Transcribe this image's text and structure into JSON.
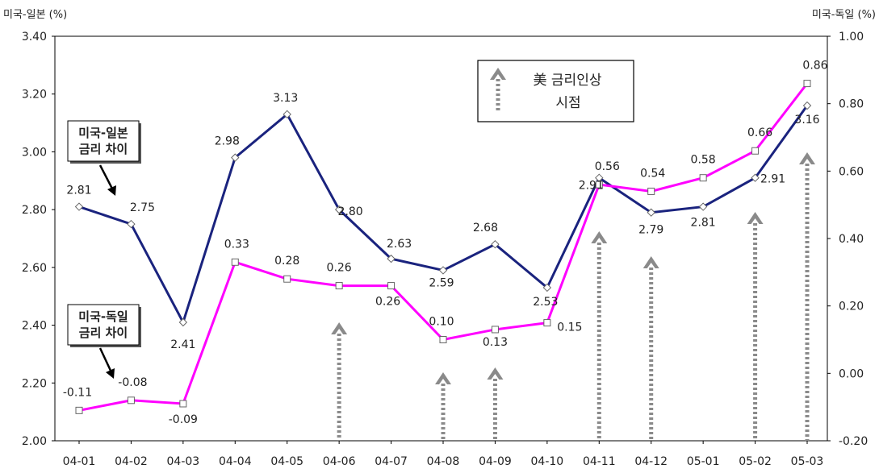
{
  "chart_data": {
    "type": "line",
    "categories": [
      "04-01",
      "04-02",
      "04-03",
      "04-04",
      "04-05",
      "04-06",
      "04-07",
      "04-08",
      "04-09",
      "04-10",
      "04-11",
      "04-12",
      "05-01",
      "05-02",
      "05-03"
    ],
    "left_axis_title": "미국-일본 (%)",
    "right_axis_title": "미국-독일 (%)",
    "left_ylim": [
      2.0,
      3.4
    ],
    "right_ylim": [
      -0.2,
      1.0
    ],
    "left_ticks": [
      "2.00",
      "2.20",
      "2.40",
      "2.60",
      "2.80",
      "3.00",
      "3.20",
      "3.40"
    ],
    "right_ticks": [
      "-0.20",
      "0.00",
      "0.20",
      "0.40",
      "0.60",
      "0.80",
      "1.00"
    ],
    "series": [
      {
        "key": "us_japan",
        "axis": "left",
        "color": "#1a237e",
        "values": [
          2.81,
          2.75,
          2.41,
          2.98,
          3.13,
          2.8,
          2.63,
          2.59,
          2.68,
          2.53,
          2.91,
          2.79,
          2.81,
          2.91,
          3.16
        ],
        "labels": [
          "2.81",
          "2.75",
          "2.41",
          "2.98",
          "3.13",
          "2.80",
          "2.63",
          "2.59",
          "2.68",
          "2.53",
          "2.91",
          "2.79",
          "2.81",
          "2.91",
          "3.16"
        ]
      },
      {
        "key": "us_germany",
        "axis": "right",
        "color": "#ff00ff",
        "values": [
          -0.11,
          -0.08,
          -0.09,
          0.33,
          0.28,
          0.26,
          0.26,
          0.1,
          0.13,
          0.15,
          0.56,
          0.54,
          0.58,
          0.66,
          0.86
        ],
        "labels": [
          "-0.11",
          "-0.08",
          "-0.09",
          "0.33",
          "0.28",
          "0.26",
          "0.26",
          "0.10",
          "0.13",
          "0.15",
          "0.56",
          "0.54",
          "0.58",
          "0.66",
          "0.86"
        ]
      }
    ],
    "annotations": {
      "us_japan_note": [
        "미국-일본",
        "금리 차이"
      ],
      "us_germany_note": [
        "미국-독일",
        "금리 차이"
      ],
      "legend_line1": "美 금리인상",
      "legend_line2": "시점"
    },
    "rate_hike_markers": [
      "04-06",
      "04-08",
      "04-09",
      "04-11",
      "04-12",
      "05-02",
      "05-03"
    ],
    "grid": false
  }
}
